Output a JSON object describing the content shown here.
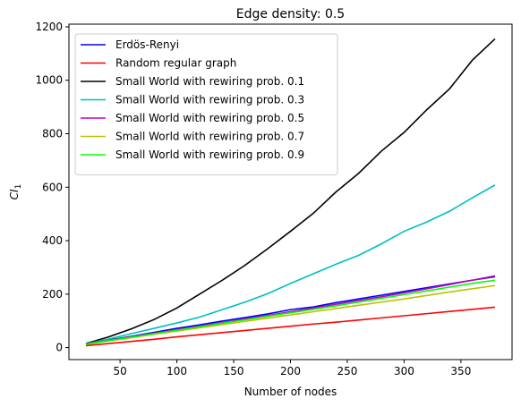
{
  "chart_data": {
    "type": "line",
    "title": "Edge density: 0.5",
    "xlabel": "Number of nodes",
    "ylabel": "CI",
    "ylabel_sub": "1",
    "xlim": [
      5,
      395
    ],
    "ylim": [
      -45,
      1210
    ],
    "xticks": [
      50,
      100,
      150,
      200,
      250,
      300,
      350
    ],
    "yticks": [
      0,
      200,
      400,
      600,
      800,
      1000,
      1200
    ],
    "legend_position": "upper-left",
    "grid": false,
    "x": [
      20,
      40,
      60,
      80,
      100,
      120,
      140,
      160,
      180,
      200,
      220,
      240,
      260,
      280,
      300,
      320,
      340,
      360,
      380
    ],
    "series": [
      {
        "name": "Erdös-Renyi",
        "color": "#0000ff",
        "values": [
          12,
          28,
          42,
          57,
          72,
          85,
          99,
          112,
          126,
          142,
          152,
          168,
          182,
          196,
          210,
          224,
          238,
          252,
          265
        ]
      },
      {
        "name": "Random regular graph",
        "color": "#ff0000",
        "values": [
          7,
          15,
          23,
          31,
          40,
          48,
          56,
          64,
          72,
          80,
          88,
          95,
          103,
          111,
          119,
          127,
          135,
          143,
          151
        ]
      },
      {
        "name": "Small World with rewiring prob. 0.1",
        "color": "#000000",
        "values": [
          15,
          40,
          70,
          105,
          148,
          200,
          252,
          308,
          370,
          435,
          502,
          582,
          652,
          735,
          805,
          890,
          968,
          1075,
          1155
        ]
      },
      {
        "name": "Small World with rewiring prob. 0.3",
        "color": "#00bfbf",
        "values": [
          14,
          32,
          52,
          72,
          92,
          114,
          142,
          170,
          202,
          240,
          276,
          312,
          345,
          388,
          435,
          470,
          510,
          560,
          608
        ]
      },
      {
        "name": "Small World with rewiring prob. 0.5",
        "color": "#bf00bf",
        "values": [
          13,
          27,
          40,
          54,
          67,
          80,
          93,
          107,
          120,
          134,
          148,
          162,
          176,
          190,
          205,
          220,
          236,
          252,
          268
        ]
      },
      {
        "name": "Small World with rewiring prob. 0.7",
        "color": "#bfbf00",
        "values": [
          12,
          25,
          37,
          50,
          62,
          74,
          86,
          98,
          110,
          122,
          134,
          146,
          158,
          170,
          182,
          195,
          208,
          220,
          232
        ]
      },
      {
        "name": "Small World with rewiring prob. 0.9",
        "color": "#00ff00",
        "values": [
          12,
          26,
          39,
          52,
          65,
          78,
          91,
          104,
          117,
          130,
          143,
          156,
          170,
          184,
          198,
          212,
          226,
          240,
          252
        ]
      }
    ]
  }
}
